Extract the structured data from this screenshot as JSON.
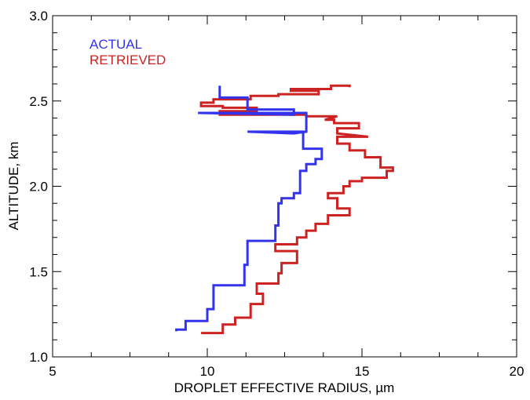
{
  "chart_data": {
    "type": "line",
    "title": "",
    "xlabel": "DROPLET EFFECTIVE RADIUS, µm",
    "ylabel": "ALTITUDE, km",
    "xlim": [
      5,
      20
    ],
    "ylim": [
      1.0,
      3.0
    ],
    "x_ticks": [
      5,
      10,
      15,
      20
    ],
    "x_tick_labels": [
      "5",
      "10",
      "15",
      "20"
    ],
    "x_minor_ticks": [
      6.25,
      7.5,
      8.75,
      11.25,
      12.5,
      13.75,
      16.25,
      17.5,
      18.75
    ],
    "y_ticks": [
      1.0,
      1.5,
      2.0,
      2.5,
      3.0
    ],
    "y_tick_labels": [
      "1.0",
      "1.5",
      "2.0",
      "2.5",
      "3.0"
    ],
    "y_minor_ticks": [
      1.1,
      1.2,
      1.3,
      1.4,
      1.6,
      1.7,
      1.8,
      1.9,
      2.1,
      2.2,
      2.3,
      2.4,
      2.6,
      2.7,
      2.8,
      2.9
    ],
    "grid": false,
    "legend_position": "top-left",
    "series": [
      {
        "name": "ACTUAL",
        "color": "#3333ee",
        "points": [
          [
            9.0,
            1.15
          ],
          [
            9.0,
            1.16
          ],
          [
            9.3,
            1.16
          ],
          [
            9.3,
            1.21
          ],
          [
            10.0,
            1.21
          ],
          [
            10.0,
            1.28
          ],
          [
            10.2,
            1.28
          ],
          [
            10.2,
            1.42
          ],
          [
            11.2,
            1.42
          ],
          [
            11.2,
            1.54
          ],
          [
            11.3,
            1.54
          ],
          [
            11.3,
            1.68
          ],
          [
            12.2,
            1.68
          ],
          [
            12.2,
            1.77
          ],
          [
            12.3,
            1.77
          ],
          [
            12.3,
            1.9
          ],
          [
            12.4,
            1.9
          ],
          [
            12.4,
            1.93
          ],
          [
            12.7,
            1.93
          ],
          [
            12.8,
            1.93
          ],
          [
            12.8,
            1.96
          ],
          [
            13.0,
            1.96
          ],
          [
            13.0,
            2.09
          ],
          [
            13.2,
            2.09
          ],
          [
            13.2,
            2.13
          ],
          [
            13.5,
            2.13
          ],
          [
            13.5,
            2.16
          ],
          [
            13.7,
            2.16
          ],
          [
            13.7,
            2.22
          ],
          [
            13.1,
            2.22
          ],
          [
            13.1,
            2.32
          ],
          [
            11.3,
            2.32
          ],
          [
            12.8,
            2.31
          ],
          [
            13.2,
            2.32
          ],
          [
            13.2,
            2.43
          ],
          [
            9.7,
            2.43
          ],
          [
            12.8,
            2.42
          ],
          [
            12.8,
            2.45
          ],
          [
            11.3,
            2.45
          ],
          [
            11.3,
            2.52
          ],
          [
            10.4,
            2.52
          ],
          [
            10.4,
            2.59
          ]
        ]
      },
      {
        "name": "RETRIEVED",
        "color": "#cc2222",
        "points": [
          [
            9.8,
            1.14
          ],
          [
            10.5,
            1.14
          ],
          [
            10.5,
            1.19
          ],
          [
            10.9,
            1.19
          ],
          [
            10.9,
            1.23
          ],
          [
            11.4,
            1.23
          ],
          [
            11.4,
            1.31
          ],
          [
            11.8,
            1.31
          ],
          [
            11.8,
            1.37
          ],
          [
            11.6,
            1.37
          ],
          [
            11.6,
            1.43
          ],
          [
            12.3,
            1.43
          ],
          [
            12.3,
            1.49
          ],
          [
            12.4,
            1.49
          ],
          [
            12.4,
            1.55
          ],
          [
            12.9,
            1.55
          ],
          [
            12.9,
            1.62
          ],
          [
            12.2,
            1.62
          ],
          [
            12.2,
            1.66
          ],
          [
            12.9,
            1.66
          ],
          [
            12.9,
            1.7
          ],
          [
            13.2,
            1.7
          ],
          [
            13.2,
            1.74
          ],
          [
            13.5,
            1.74
          ],
          [
            13.5,
            1.78
          ],
          [
            13.9,
            1.78
          ],
          [
            13.9,
            1.83
          ],
          [
            14.6,
            1.83
          ],
          [
            14.6,
            1.87
          ],
          [
            14.2,
            1.87
          ],
          [
            14.2,
            1.93
          ],
          [
            13.9,
            1.93
          ],
          [
            13.9,
            1.96
          ],
          [
            14.4,
            1.96
          ],
          [
            14.4,
            2.0
          ],
          [
            14.6,
            2.0
          ],
          [
            14.6,
            2.03
          ],
          [
            15.0,
            2.03
          ],
          [
            15.0,
            2.05
          ],
          [
            15.8,
            2.05
          ],
          [
            15.8,
            2.09
          ],
          [
            16.0,
            2.09
          ],
          [
            16.0,
            2.11
          ],
          [
            15.6,
            2.11
          ],
          [
            15.6,
            2.17
          ],
          [
            15.1,
            2.17
          ],
          [
            15.1,
            2.21
          ],
          [
            14.6,
            2.21
          ],
          [
            14.6,
            2.25
          ],
          [
            14.2,
            2.25
          ],
          [
            14.2,
            2.29
          ],
          [
            15.2,
            2.29
          ],
          [
            14.2,
            2.31
          ],
          [
            14.2,
            2.34
          ],
          [
            14.9,
            2.34
          ],
          [
            14.9,
            2.37
          ],
          [
            14.1,
            2.37
          ],
          [
            14.1,
            2.39
          ],
          [
            13.8,
            2.39
          ],
          [
            14.2,
            2.41
          ],
          [
            13.2,
            2.41
          ],
          [
            13.2,
            2.42
          ],
          [
            10.4,
            2.42
          ],
          [
            10.4,
            2.44
          ],
          [
            11.6,
            2.44
          ],
          [
            11.6,
            2.46
          ],
          [
            10.5,
            2.46
          ],
          [
            10.5,
            2.47
          ],
          [
            9.8,
            2.47
          ],
          [
            9.8,
            2.49
          ],
          [
            10.2,
            2.49
          ],
          [
            10.2,
            2.51
          ],
          [
            11.4,
            2.51
          ],
          [
            11.4,
            2.53
          ],
          [
            12.3,
            2.53
          ],
          [
            12.3,
            2.54
          ],
          [
            13.6,
            2.54
          ],
          [
            13.6,
            2.56
          ],
          [
            12.7,
            2.56
          ],
          [
            12.7,
            2.57
          ],
          [
            14.0,
            2.57
          ],
          [
            14.0,
            2.59
          ],
          [
            14.6,
            2.59
          ],
          [
            14.6,
            2.58
          ]
        ]
      }
    ]
  }
}
